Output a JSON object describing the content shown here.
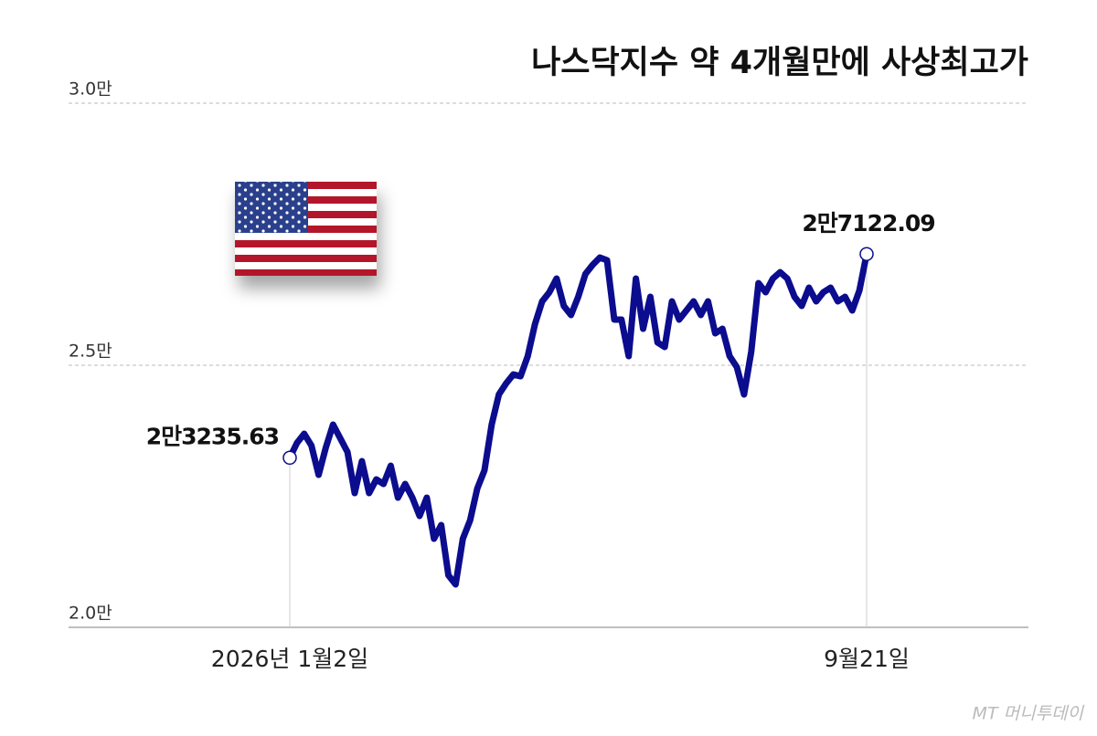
{
  "chart_data": {
    "type": "line",
    "title": "나스닥지수 약 4개월만에 사상최고가",
    "watermark": "MT 머니투데이",
    "categories": [
      "2026년 1월2일",
      null,
      null,
      null,
      null,
      null,
      null,
      null,
      null,
      null,
      null,
      null,
      null,
      null,
      null,
      null,
      null,
      null,
      null,
      null,
      null,
      null,
      null,
      null,
      null,
      null,
      null,
      null,
      null,
      null,
      null,
      null,
      null,
      null,
      null,
      null,
      null,
      null,
      null,
      null,
      null,
      null,
      null,
      null,
      null,
      null,
      null,
      null,
      null,
      null,
      null,
      null,
      null,
      null,
      null,
      null,
      null,
      null,
      null,
      null,
      null,
      null,
      null,
      null,
      null,
      null,
      null,
      null,
      null,
      null,
      null,
      null,
      null,
      null,
      null,
      null,
      null,
      null,
      null,
      null,
      "9월21일"
    ],
    "values": [
      23235.63,
      23519,
      23693,
      23467,
      22909,
      23432,
      23868,
      23606,
      23345,
      22561,
      23170,
      22561,
      22822,
      22735,
      23083,
      22474,
      22735,
      22474,
      22125,
      22474,
      21690,
      21951,
      20993,
      20819,
      21690,
      22038,
      22648,
      22996,
      23868,
      24443,
      24652,
      24825,
      24790,
      25174,
      25783,
      26219,
      26393,
      26654,
      26132,
      25958,
      26306,
      26741,
      26915,
      27055,
      27003,
      25871,
      25871,
      25174,
      26654,
      25696,
      26306,
      25435,
      25348,
      26219,
      25871,
      26045,
      26219,
      25958,
      26219,
      25609,
      25696,
      25174,
      24965,
      24443,
      25261,
      26567,
      26393,
      26654,
      26776,
      26654,
      26306,
      26132,
      26480,
      26219,
      26393,
      26480,
      26219,
      26306,
      26045,
      26428,
      27122.09
    ],
    "value_labels": [
      "2만3235.63",
      null,
      null,
      null,
      null,
      null,
      null,
      null,
      null,
      null,
      null,
      null,
      null,
      null,
      null,
      null,
      null,
      null,
      null,
      null,
      null,
      null,
      null,
      null,
      null,
      null,
      null,
      null,
      null,
      null,
      null,
      null,
      null,
      null,
      null,
      null,
      null,
      null,
      null,
      null,
      null,
      null,
      null,
      null,
      null,
      null,
      null,
      null,
      null,
      null,
      null,
      null,
      null,
      null,
      null,
      null,
      null,
      null,
      null,
      null,
      null,
      null,
      null,
      null,
      null,
      null,
      null,
      null,
      null,
      null,
      null,
      null,
      null,
      null,
      null,
      null,
      null,
      null,
      null,
      null,
      "2만7122.09"
    ],
    "color": "#0c0c8e",
    "ylim": [
      20000,
      30000
    ],
    "yticks": [
      {
        "value": 20000,
        "label": "2.0만"
      },
      {
        "value": 25000,
        "label": "2.5만"
      },
      {
        "value": 30000,
        "label": "3.0만"
      }
    ],
    "grid": true
  }
}
